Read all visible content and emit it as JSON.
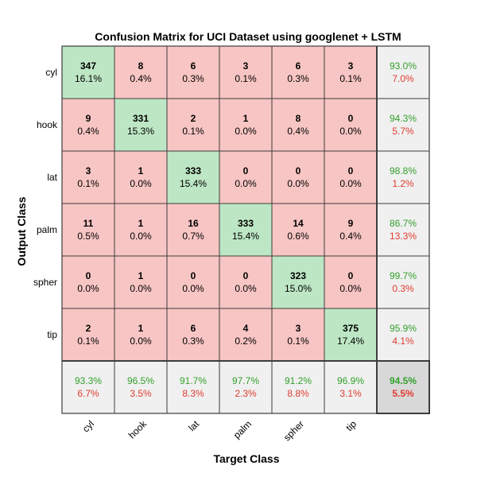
{
  "chart_data": {
    "type": "heatmap",
    "title": "Confusion Matrix for UCI Dataset using googlenet + LSTM",
    "xlabel": "Target Class",
    "ylabel": "Output Class",
    "classes": [
      "cyl",
      "hook",
      "lat",
      "palm",
      "spher",
      "tip"
    ],
    "matrix": [
      [
        347,
        8,
        6,
        3,
        6,
        3
      ],
      [
        9,
        331,
        2,
        1,
        8,
        0
      ],
      [
        3,
        1,
        333,
        0,
        0,
        0
      ],
      [
        11,
        1,
        16,
        333,
        14,
        9
      ],
      [
        0,
        1,
        0,
        0,
        323,
        0
      ],
      [
        2,
        1,
        6,
        4,
        3,
        375
      ]
    ],
    "matrix_pct": [
      [
        "16.1%",
        "0.4%",
        "0.3%",
        "0.1%",
        "0.3%",
        "0.1%"
      ],
      [
        "0.4%",
        "15.3%",
        "0.1%",
        "0.0%",
        "0.4%",
        "0.0%"
      ],
      [
        "0.1%",
        "0.0%",
        "15.4%",
        "0.0%",
        "0.0%",
        "0.0%"
      ],
      [
        "0.5%",
        "0.0%",
        "0.7%",
        "15.4%",
        "0.6%",
        "0.4%"
      ],
      [
        "0.0%",
        "0.0%",
        "0.0%",
        "0.0%",
        "15.0%",
        "0.0%"
      ],
      [
        "0.1%",
        "0.0%",
        "0.3%",
        "0.2%",
        "0.1%",
        "17.4%"
      ]
    ],
    "row_summary": [
      {
        "correct": "93.0%",
        "error": "7.0%"
      },
      {
        "correct": "94.3%",
        "error": "5.7%"
      },
      {
        "correct": "98.8%",
        "error": "1.2%"
      },
      {
        "correct": "86.7%",
        "error": "13.3%"
      },
      {
        "correct": "99.7%",
        "error": "0.3%"
      },
      {
        "correct": "95.9%",
        "error": "4.1%"
      }
    ],
    "col_summary": [
      {
        "correct": "93.3%",
        "error": "6.7%"
      },
      {
        "correct": "96.5%",
        "error": "3.5%"
      },
      {
        "correct": "91.7%",
        "error": "8.3%"
      },
      {
        "correct": "97.7%",
        "error": "2.3%"
      },
      {
        "correct": "91.2%",
        "error": "8.8%"
      },
      {
        "correct": "96.9%",
        "error": "3.1%"
      }
    ],
    "overall": {
      "correct": "94.5%",
      "error": "5.5%"
    },
    "colors": {
      "diagonal": "#bde6c4",
      "off_diagonal": "#f7c5c3",
      "summary": "#f0f0f0",
      "overall": "#d8d8d8",
      "correct_text": "#33a02c",
      "error_text": "#e03c31",
      "grid": "#3d3d3d"
    }
  }
}
